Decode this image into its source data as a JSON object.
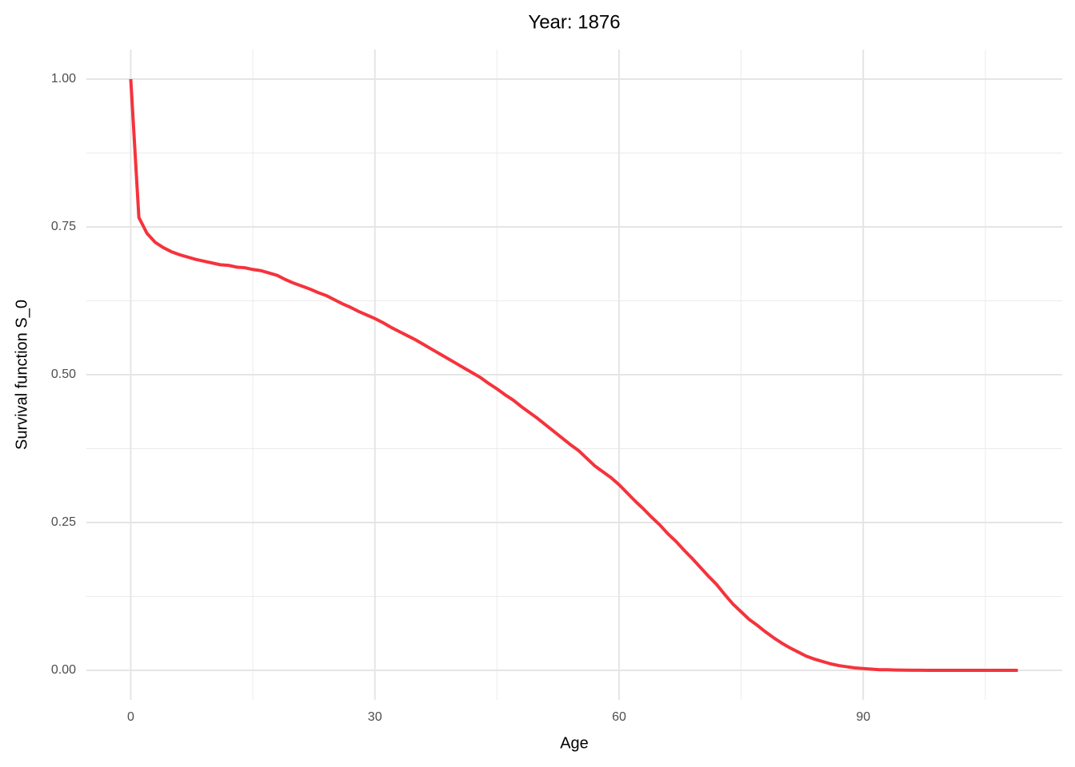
{
  "chart_data": {
    "type": "line",
    "title": "Year: 1876",
    "x_label": "Age",
    "y_label": "Survival function S_0",
    "x": [
      0,
      1,
      2,
      3,
      4,
      5,
      6,
      7,
      8,
      9,
      10,
      11,
      12,
      13,
      14,
      15,
      16,
      17,
      18,
      19,
      20,
      21,
      22,
      23,
      24,
      25,
      26,
      27,
      28,
      29,
      30,
      31,
      32,
      33,
      34,
      35,
      36,
      37,
      38,
      39,
      40,
      41,
      42,
      43,
      44,
      45,
      46,
      47,
      48,
      49,
      50,
      51,
      52,
      53,
      54,
      55,
      56,
      57,
      58,
      59,
      60,
      61,
      62,
      63,
      64,
      65,
      66,
      67,
      68,
      69,
      70,
      71,
      72,
      73,
      74,
      75,
      76,
      77,
      78,
      79,
      80,
      81,
      82,
      83,
      84,
      85,
      86,
      87,
      88,
      89,
      90,
      91,
      92,
      93,
      94,
      95,
      96,
      97,
      98,
      99,
      100,
      101,
      102,
      103,
      104,
      105,
      106,
      107,
      108,
      109
    ],
    "series": [
      {
        "name": "S_0",
        "color": "#f5333c",
        "values": [
          1.0,
          0.766,
          0.739,
          0.724,
          0.715,
          0.708,
          0.703,
          0.699,
          0.695,
          0.692,
          0.689,
          0.686,
          0.685,
          0.682,
          0.681,
          0.678,
          0.676,
          0.672,
          0.668,
          0.661,
          0.655,
          0.65,
          0.645,
          0.639,
          0.634,
          0.627,
          0.62,
          0.614,
          0.607,
          0.601,
          0.595,
          0.588,
          0.58,
          0.573,
          0.566,
          0.559,
          0.551,
          0.543,
          0.535,
          0.527,
          0.519,
          0.511,
          0.503,
          0.495,
          0.485,
          0.476,
          0.466,
          0.457,
          0.446,
          0.436,
          0.426,
          0.415,
          0.404,
          0.393,
          0.382,
          0.372,
          0.359,
          0.346,
          0.336,
          0.326,
          0.314,
          0.3,
          0.286,
          0.273,
          0.259,
          0.246,
          0.231,
          0.218,
          0.203,
          0.189,
          0.174,
          0.159,
          0.145,
          0.128,
          0.112,
          0.099,
          0.086,
          0.076,
          0.065,
          0.055,
          0.046,
          0.038,
          0.031,
          0.024,
          0.019,
          0.015,
          0.011,
          0.008,
          0.006,
          0.004,
          0.003,
          0.002,
          0.001,
          0.001,
          0.0005,
          0.0003,
          0.0002,
          0.0001,
          0,
          0,
          0,
          0,
          0,
          0,
          0,
          0,
          0,
          0,
          0,
          0
        ]
      }
    ],
    "xlim": [
      -5.45,
      114.45
    ],
    "ylim": [
      -0.05,
      1.05
    ],
    "xticks": [
      0,
      30,
      60,
      90
    ],
    "yticks": [
      {
        "value": 0,
        "label": "0.00"
      },
      {
        "value": 0.25,
        "label": "0.25"
      },
      {
        "value": 0.5,
        "label": "0.50"
      },
      {
        "value": 0.75,
        "label": "0.75"
      },
      {
        "value": 1,
        "label": "1.00"
      }
    ],
    "grid": true
  }
}
